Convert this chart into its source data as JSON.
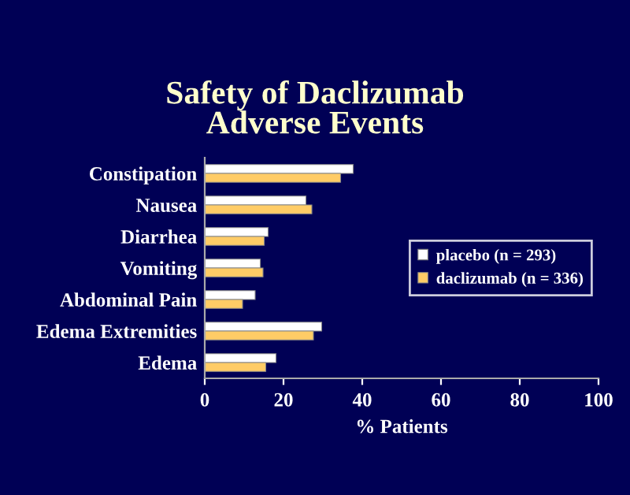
{
  "chart_data": {
    "type": "bar",
    "orientation": "horizontal",
    "title": "Safety of Daclizumab\nAdverse Events",
    "xlabel": "% Patients",
    "categories": [
      "Constipation",
      "Nausea",
      "Diarrhea",
      "Vomiting",
      "Abdominal Pain",
      "Edema Extremities",
      "Edema"
    ],
    "series": [
      {
        "name": "placebo (n = 293)",
        "color": "#ffffff",
        "values": [
          37.7,
          25.7,
          16.1,
          14.1,
          12.8,
          29.7,
          18.1
        ]
      },
      {
        "name": "daclizumab (n = 336)",
        "color": "#ffcc66",
        "values": [
          34.5,
          27.2,
          15.1,
          14.8,
          9.6,
          27.6,
          15.5
        ]
      }
    ],
    "xlim": [
      0,
      100
    ],
    "xticks": [
      0,
      20,
      40,
      60,
      80,
      100
    ],
    "legend": "right",
    "grid": false
  }
}
